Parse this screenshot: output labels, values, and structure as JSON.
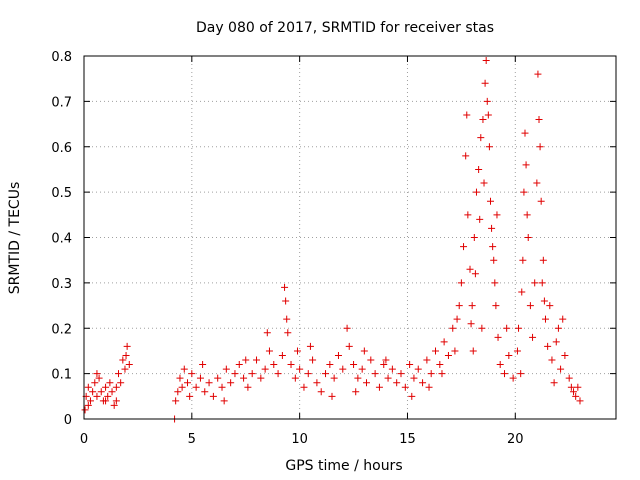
{
  "chart_data": {
    "type": "scatter",
    "title": "Day 080 of 2017, SRMTID for receiver stas",
    "xlabel": "GPS time / hours",
    "ylabel": "SRMTID / TECUs",
    "xlim": [
      0,
      24.67
    ],
    "ylim": [
      0,
      0.8
    ],
    "x_ticks": [
      0,
      5,
      10,
      15,
      20
    ],
    "x_tick_labels": [
      "0",
      "5",
      "10",
      "15",
      "20"
    ],
    "y_ticks": [
      0,
      0.1,
      0.2,
      0.3,
      0.4,
      0.5,
      0.6,
      0.7,
      0.8
    ],
    "y_tick_labels": [
      "0",
      "0.1",
      "0.2",
      "0.3",
      "0.4",
      "0.5",
      "0.6",
      "0.7",
      "0.8"
    ],
    "grid": true,
    "marker": "+",
    "color": "#e00000",
    "series": [
      {
        "name": "SRMTID",
        "points": [
          [
            0.1,
            0.05
          ],
          [
            0.2,
            0.07
          ],
          [
            0.3,
            0.04
          ],
          [
            0.4,
            0.06
          ],
          [
            0.5,
            0.08
          ],
          [
            0.6,
            0.05
          ],
          [
            0.7,
            0.09
          ],
          [
            0.8,
            0.06
          ],
          [
            0.9,
            0.04
          ],
          [
            1.0,
            0.07
          ],
          [
            1.1,
            0.05
          ],
          [
            1.2,
            0.08
          ],
          [
            1.3,
            0.06
          ],
          [
            1.4,
            0.03
          ],
          [
            1.5,
            0.07
          ],
          [
            1.6,
            0.1
          ],
          [
            1.7,
            0.08
          ],
          [
            1.8,
            0.13
          ],
          [
            1.9,
            0.11
          ],
          [
            2.0,
            0.16
          ],
          [
            0.2,
            0.03
          ],
          [
            0.6,
            0.1
          ],
          [
            1.0,
            0.04
          ],
          [
            1.5,
            0.04
          ],
          [
            1.95,
            0.14
          ],
          [
            4.2,
            0.0
          ],
          [
            4.25,
            0.04
          ],
          [
            4.35,
            0.06
          ],
          [
            4.45,
            0.09
          ],
          [
            4.55,
            0.07
          ],
          [
            4.65,
            0.11
          ],
          [
            4.8,
            0.08
          ],
          [
            5.0,
            0.1
          ],
          [
            5.2,
            0.07
          ],
          [
            5.4,
            0.09
          ],
          [
            5.6,
            0.06
          ],
          [
            5.8,
            0.08
          ],
          [
            6.0,
            0.05
          ],
          [
            6.2,
            0.09
          ],
          [
            6.4,
            0.07
          ],
          [
            6.6,
            0.11
          ],
          [
            6.8,
            0.08
          ],
          [
            7.0,
            0.1
          ],
          [
            7.2,
            0.12
          ],
          [
            7.4,
            0.09
          ],
          [
            7.6,
            0.07
          ],
          [
            7.8,
            0.1
          ],
          [
            8.0,
            0.13
          ],
          [
            8.2,
            0.09
          ],
          [
            8.4,
            0.11
          ],
          [
            8.6,
            0.15
          ],
          [
            8.8,
            0.12
          ],
          [
            9.0,
            0.1
          ],
          [
            9.2,
            0.14
          ],
          [
            9.3,
            0.29
          ],
          [
            9.35,
            0.26
          ],
          [
            9.4,
            0.22
          ],
          [
            9.45,
            0.19
          ],
          [
            9.6,
            0.12
          ],
          [
            9.8,
            0.09
          ],
          [
            10.0,
            0.11
          ],
          [
            10.2,
            0.07
          ],
          [
            10.4,
            0.1
          ],
          [
            10.6,
            0.13
          ],
          [
            10.8,
            0.08
          ],
          [
            11.0,
            0.06
          ],
          [
            11.2,
            0.1
          ],
          [
            11.4,
            0.12
          ],
          [
            11.6,
            0.09
          ],
          [
            11.8,
            0.14
          ],
          [
            12.0,
            0.11
          ],
          [
            12.2,
            0.2
          ],
          [
            12.3,
            0.16
          ],
          [
            12.5,
            0.12
          ],
          [
            12.7,
            0.09
          ],
          [
            12.9,
            0.11
          ],
          [
            13.1,
            0.08
          ],
          [
            13.3,
            0.13
          ],
          [
            13.5,
            0.1
          ],
          [
            13.7,
            0.07
          ],
          [
            13.9,
            0.12
          ],
          [
            14.1,
            0.09
          ],
          [
            14.3,
            0.11
          ],
          [
            14.5,
            0.08
          ],
          [
            14.7,
            0.1
          ],
          [
            14.9,
            0.07
          ],
          [
            15.1,
            0.12
          ],
          [
            15.3,
            0.09
          ],
          [
            15.5,
            0.11
          ],
          [
            15.7,
            0.08
          ],
          [
            15.9,
            0.13
          ],
          [
            16.1,
            0.1
          ],
          [
            16.3,
            0.15
          ],
          [
            16.5,
            0.12
          ],
          [
            16.7,
            0.17
          ],
          [
            16.9,
            0.14
          ],
          [
            17.1,
            0.2
          ],
          [
            17.3,
            0.22
          ],
          [
            17.5,
            0.3
          ],
          [
            17.6,
            0.38
          ],
          [
            17.7,
            0.58
          ],
          [
            17.75,
            0.67
          ],
          [
            17.8,
            0.45
          ],
          [
            17.9,
            0.33
          ],
          [
            18.0,
            0.25
          ],
          [
            18.1,
            0.4
          ],
          [
            18.2,
            0.5
          ],
          [
            18.3,
            0.55
          ],
          [
            18.4,
            0.62
          ],
          [
            18.5,
            0.66
          ],
          [
            18.6,
            0.74
          ],
          [
            18.65,
            0.79
          ],
          [
            18.7,
            0.7
          ],
          [
            18.8,
            0.6
          ],
          [
            18.85,
            0.48
          ],
          [
            18.9,
            0.42
          ],
          [
            19.0,
            0.35
          ],
          [
            19.1,
            0.25
          ],
          [
            19.2,
            0.18
          ],
          [
            19.3,
            0.12
          ],
          [
            19.5,
            0.1
          ],
          [
            19.7,
            0.14
          ],
          [
            19.9,
            0.09
          ],
          [
            20.1,
            0.15
          ],
          [
            20.3,
            0.28
          ],
          [
            20.4,
            0.5
          ],
          [
            20.45,
            0.63
          ],
          [
            20.5,
            0.56
          ],
          [
            20.6,
            0.4
          ],
          [
            20.7,
            0.25
          ],
          [
            20.8,
            0.18
          ],
          [
            20.9,
            0.3
          ],
          [
            21.0,
            0.52
          ],
          [
            21.05,
            0.76
          ],
          [
            21.1,
            0.66
          ],
          [
            21.15,
            0.6
          ],
          [
            21.2,
            0.48
          ],
          [
            21.3,
            0.35
          ],
          [
            21.4,
            0.22
          ],
          [
            21.5,
            0.16
          ],
          [
            21.7,
            0.13
          ],
          [
            21.9,
            0.17
          ],
          [
            22.1,
            0.11
          ],
          [
            22.3,
            0.14
          ],
          [
            22.5,
            0.09
          ],
          [
            22.6,
            0.07
          ],
          [
            22.7,
            0.06
          ],
          [
            22.8,
            0.05
          ],
          [
            22.9,
            0.07
          ],
          [
            17.4,
            0.25
          ],
          [
            17.95,
            0.21
          ],
          [
            18.15,
            0.32
          ],
          [
            18.35,
            0.44
          ],
          [
            18.55,
            0.52
          ],
          [
            18.75,
            0.67
          ],
          [
            18.95,
            0.38
          ],
          [
            19.05,
            0.3
          ],
          [
            20.35,
            0.35
          ],
          [
            20.55,
            0.45
          ],
          [
            21.25,
            0.3
          ],
          [
            21.35,
            0.26
          ],
          [
            16.0,
            0.07
          ],
          [
            16.6,
            0.1
          ],
          [
            15.2,
            0.05
          ],
          [
            14.0,
            0.13
          ],
          [
            13.0,
            0.15
          ],
          [
            11.5,
            0.05
          ],
          [
            10.5,
            0.16
          ],
          [
            8.5,
            0.19
          ],
          [
            7.5,
            0.13
          ],
          [
            6.5,
            0.04
          ],
          [
            5.5,
            0.12
          ],
          [
            4.9,
            0.05
          ],
          [
            9.9,
            0.15
          ],
          [
            12.6,
            0.06
          ],
          [
            17.2,
            0.15
          ],
          [
            19.6,
            0.2
          ],
          [
            22.0,
            0.2
          ],
          [
            22.2,
            0.22
          ],
          [
            18.45,
            0.2
          ],
          [
            18.05,
            0.15
          ],
          [
            19.15,
            0.45
          ],
          [
            20.15,
            0.2
          ],
          [
            20.25,
            0.1
          ],
          [
            21.6,
            0.25
          ],
          [
            21.8,
            0.08
          ],
          [
            23.0,
            0.04
          ],
          [
            2.1,
            0.12
          ],
          [
            0.05,
            0.02
          ]
        ]
      }
    ]
  }
}
